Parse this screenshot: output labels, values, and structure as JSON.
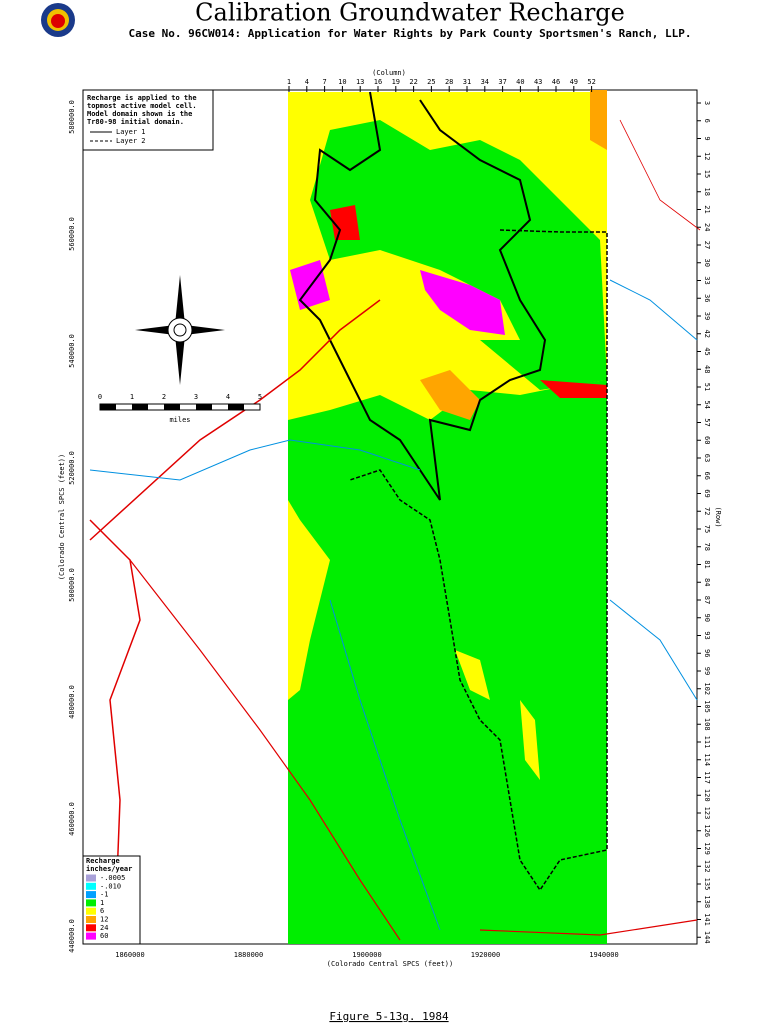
{
  "header": {
    "title": "Calibration Groundwater Recharge",
    "subtitle": "Case No. 96CW014: Application for Water Rights by Park County Sportsmen's Ranch, LLP."
  },
  "axes": {
    "column_title": "(Column)",
    "row_title": "(Row)",
    "y_title": "(Colorado Central SPCS (feet))",
    "x_title": "(Colorado Central SPCS (feet))",
    "columns": [
      "1",
      "4",
      "7",
      "10",
      "13",
      "16",
      "19",
      "22",
      "25",
      "28",
      "31",
      "34",
      "37",
      "40",
      "43",
      "46",
      "49",
      "52"
    ],
    "rows": [
      "3",
      "6",
      "9",
      "12",
      "15",
      "18",
      "21",
      "24",
      "27",
      "30",
      "33",
      "36",
      "39",
      "42",
      "45",
      "48",
      "51",
      "54",
      "57",
      "60",
      "63",
      "66",
      "69",
      "72",
      "75",
      "78",
      "81",
      "84",
      "87",
      "90",
      "93",
      "96",
      "99",
      "102",
      "105",
      "108",
      "111",
      "114",
      "117",
      "120",
      "123",
      "126",
      "129",
      "132",
      "135",
      "138",
      "141",
      "144"
    ],
    "y_labels": [
      "580000.0",
      "560000.0",
      "540000.0",
      "520000.0",
      "500000.0",
      "480000.0",
      "460000.0",
      "440000.0"
    ],
    "x_labels": [
      "1860000",
      "1880000",
      "1900000",
      "1920000",
      "1940000"
    ]
  },
  "note": {
    "lines": [
      "Recharge is applied to the",
      "topmost active model cell.",
      "Model domain shown is the",
      "Tr80-98 initial domain."
    ],
    "layer1": "Layer 1",
    "layer2": "Layer 2"
  },
  "legend": {
    "title": "Recharge",
    "units": "inches/year",
    "items": [
      {
        "label": "-.0005",
        "color": "#a8a0d8"
      },
      {
        "label": "-.010",
        "color": "#00ffff"
      },
      {
        "label": "-1",
        "color": "#00a0ff"
      },
      {
        "label": "1",
        "color": "#00ee00"
      },
      {
        "label": "6",
        "color": "#ffff00"
      },
      {
        "label": "12",
        "color": "#ffa500"
      },
      {
        "label": "24",
        "color": "#ff0000"
      },
      {
        "label": "60",
        "color": "#ff00ff"
      }
    ]
  },
  "scale": {
    "labels": [
      "0",
      "1",
      "2",
      "3",
      "4",
      "5"
    ],
    "unit": "miles"
  },
  "caption": "Figure 5-13g.  1984"
}
